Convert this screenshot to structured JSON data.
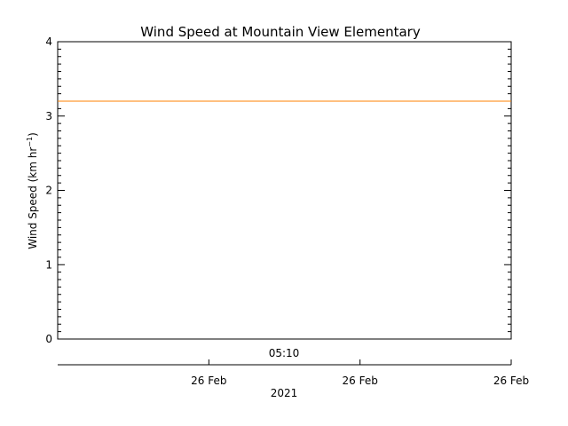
{
  "chart_data": {
    "type": "line",
    "title": "Wind Speed at Mountain View Elementary",
    "ylabel": "Wind Speed (km hr",
    "ylabel_sup": "−1",
    "ylabel_suffix": ")",
    "ylim": [
      0,
      4
    ],
    "yticks": [
      0,
      1,
      2,
      3,
      4
    ],
    "ytick_labels": [
      "0",
      "1",
      "2",
      "3",
      "4"
    ],
    "x_time_label": "05:10",
    "x_date_ticks": [
      "26 Feb",
      "26 Feb",
      "26 Feb"
    ],
    "x_year_label": "2021",
    "grid": false,
    "legend": "none",
    "series": [
      {
        "values": [
          3.2,
          3.2
        ],
        "color": "#ff8000"
      }
    ]
  }
}
